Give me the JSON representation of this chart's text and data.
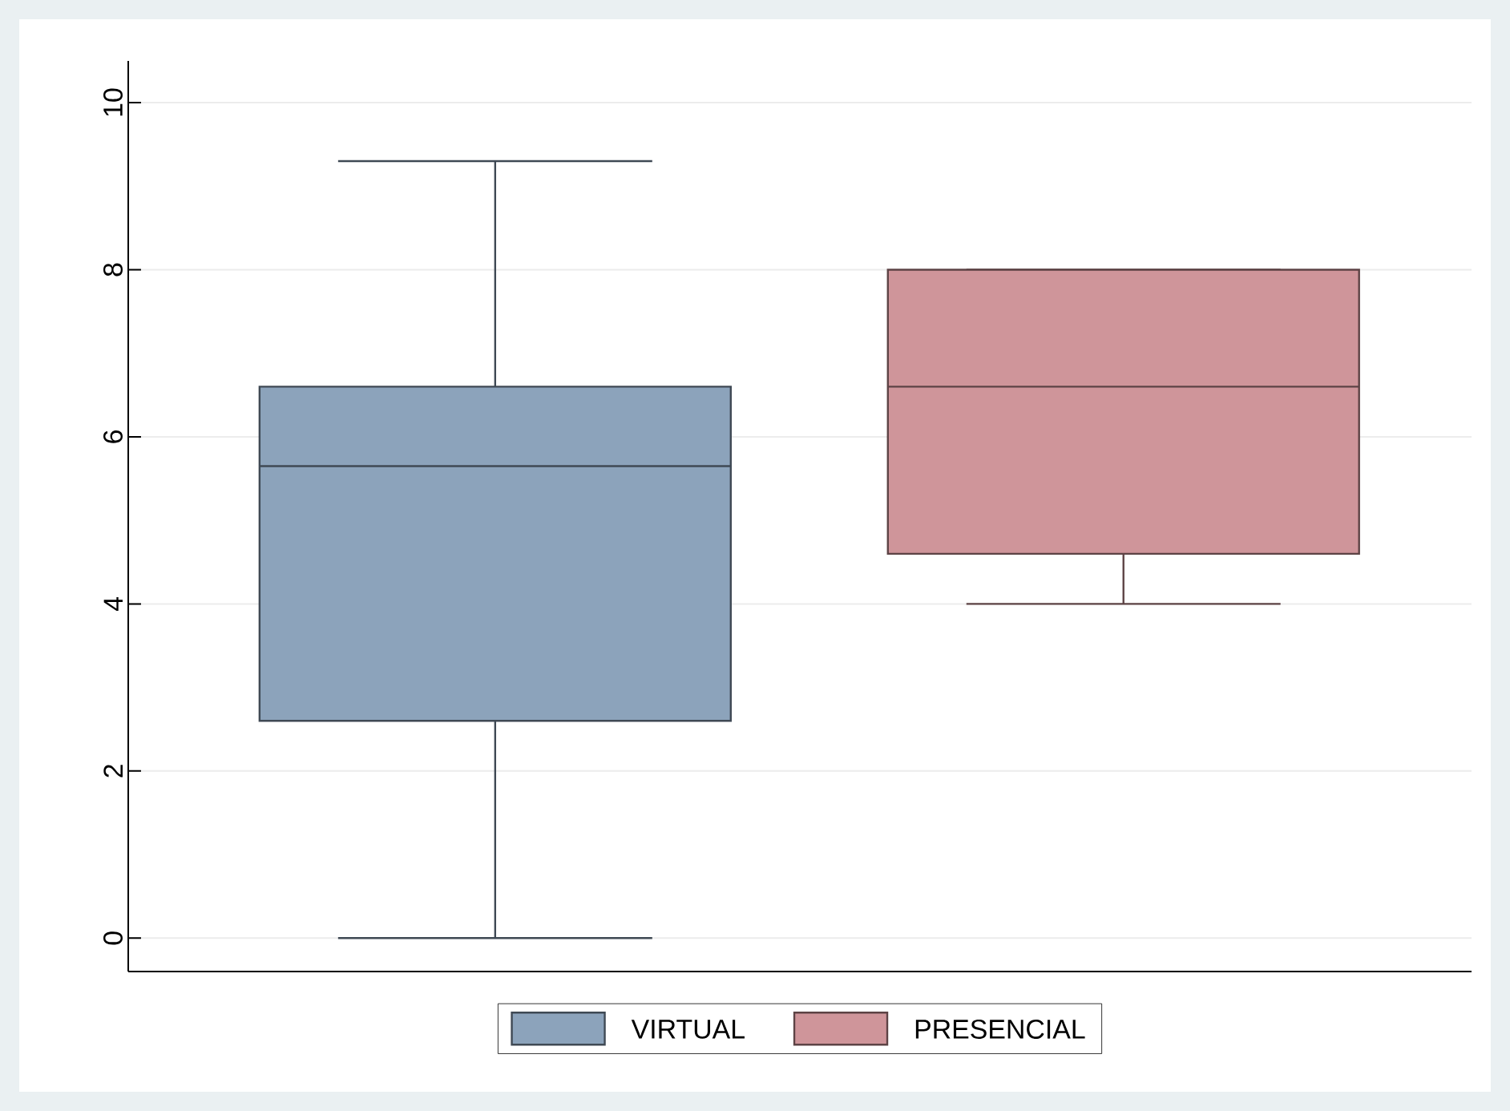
{
  "chart_data": {
    "type": "box",
    "categories": [
      null
    ],
    "series": [
      {
        "name": "VIRTUAL",
        "color": "#8ca3bb",
        "boxes": [
          {
            "low": 0,
            "q1": 2.6,
            "median": 5.65,
            "q3": 6.6,
            "high": 9.3
          }
        ]
      },
      {
        "name": "PRESENCIAL",
        "color": "#cf959a",
        "boxes": [
          {
            "low": 4,
            "q1": 4.6,
            "median": 6.6,
            "q3": 8,
            "high": 8
          }
        ]
      }
    ],
    "ylim": [
      -0.4,
      10.5
    ],
    "yticks": [
      0,
      2,
      4,
      6,
      8,
      10
    ],
    "grid": "y",
    "legend": "bottom"
  }
}
